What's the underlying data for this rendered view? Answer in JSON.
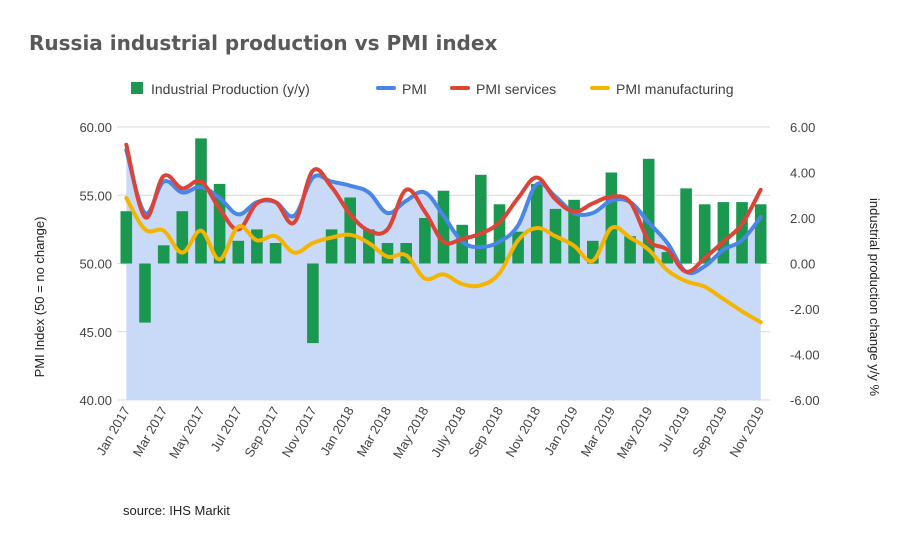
{
  "chart_data": {
    "type": "bar+line",
    "title": "Russia industrial production vs PMI index",
    "source": "source: IHS Markit",
    "left_axis": {
      "label": "PMI Index (50 = no change)",
      "min": 40,
      "max": 60,
      "ticks": [
        "60.00",
        "55.00",
        "50.00",
        "45.00",
        "40.00"
      ]
    },
    "right_axis": {
      "label": "industrial production change y/y %",
      "min": -6,
      "max": 6,
      "ticks": [
        "6.00",
        "4.00",
        "2.00",
        "0.00",
        "-2.00",
        "-4.00",
        "-6.00"
      ]
    },
    "x_tick_labels": [
      "Jan 2017",
      "Mar 2017",
      "May 2017",
      "Jul 2017",
      "Sep 2017",
      "Nov 2017",
      "Jan 2018",
      "Mar 2018",
      "May 2018",
      "July 2018",
      "Sep 2018",
      "Nov 2018",
      "Jan 2019",
      "Mar 2019",
      "May 2019",
      "Jul 2019",
      "Sep 2019",
      "Nov 2019"
    ],
    "months": 35,
    "legend_position": "top",
    "grid": true,
    "series": [
      {
        "name": "Industrial Production (y/y)",
        "type": "bar",
        "axis": "right",
        "color": "#1a9850",
        "values": [
          2.3,
          -2.6,
          0.8,
          2.3,
          5.5,
          3.5,
          1.0,
          1.5,
          0.9,
          null,
          -3.5,
          1.5,
          2.9,
          1.5,
          0.9,
          0.9,
          2.0,
          3.2,
          1.7,
          3.9,
          2.6,
          1.4,
          3.5,
          2.4,
          2.8,
          1.0,
          4.0,
          1.2,
          4.6,
          0.5,
          3.3,
          2.6,
          2.7,
          2.7,
          2.6
        ]
      },
      {
        "name": "PMI",
        "type": "area",
        "axis": "left",
        "color": "#4a86e8",
        "fill": "#c9daf8",
        "values": [
          58.3,
          53.7,
          56.0,
          55.2,
          55.6,
          54.8,
          53.6,
          54.5,
          54.5,
          53.5,
          56.3,
          56.0,
          55.7,
          55.2,
          53.7,
          54.6,
          55.2,
          53.5,
          51.6,
          51.2,
          51.6,
          52.8,
          55.8,
          54.9,
          53.7,
          53.7,
          54.6,
          54.5,
          53.0,
          51.5,
          49.4,
          49.8,
          51.0,
          51.7,
          53.4
        ]
      },
      {
        "name": "PMI services",
        "type": "line",
        "axis": "left",
        "color": "#db4437",
        "values": [
          58.7,
          53.4,
          56.4,
          55.5,
          56.0,
          54.0,
          52.5,
          54.4,
          54.5,
          53.0,
          56.8,
          55.6,
          53.6,
          52.4,
          52.5,
          55.4,
          53.8,
          51.6,
          51.8,
          52.2,
          53.0,
          54.8,
          56.3,
          54.7,
          53.8,
          54.4,
          54.9,
          54.5,
          51.7,
          51.0,
          49.4,
          50.4,
          51.6,
          52.9,
          55.4
        ]
      },
      {
        "name": "PMI manufacturing",
        "type": "line",
        "axis": "left",
        "color": "#f4b400",
        "values": [
          54.8,
          52.5,
          52.4,
          50.8,
          52.4,
          50.3,
          52.7,
          51.7,
          52.0,
          50.8,
          51.5,
          51.9,
          52.1,
          51.5,
          50.5,
          50.6,
          48.9,
          49.2,
          48.5,
          48.4,
          49.3,
          51.7,
          52.6,
          52.0,
          51.3,
          50.2,
          52.6,
          51.9,
          51.0,
          49.5,
          48.7,
          48.3,
          47.4,
          46.5,
          45.7
        ]
      }
    ]
  }
}
